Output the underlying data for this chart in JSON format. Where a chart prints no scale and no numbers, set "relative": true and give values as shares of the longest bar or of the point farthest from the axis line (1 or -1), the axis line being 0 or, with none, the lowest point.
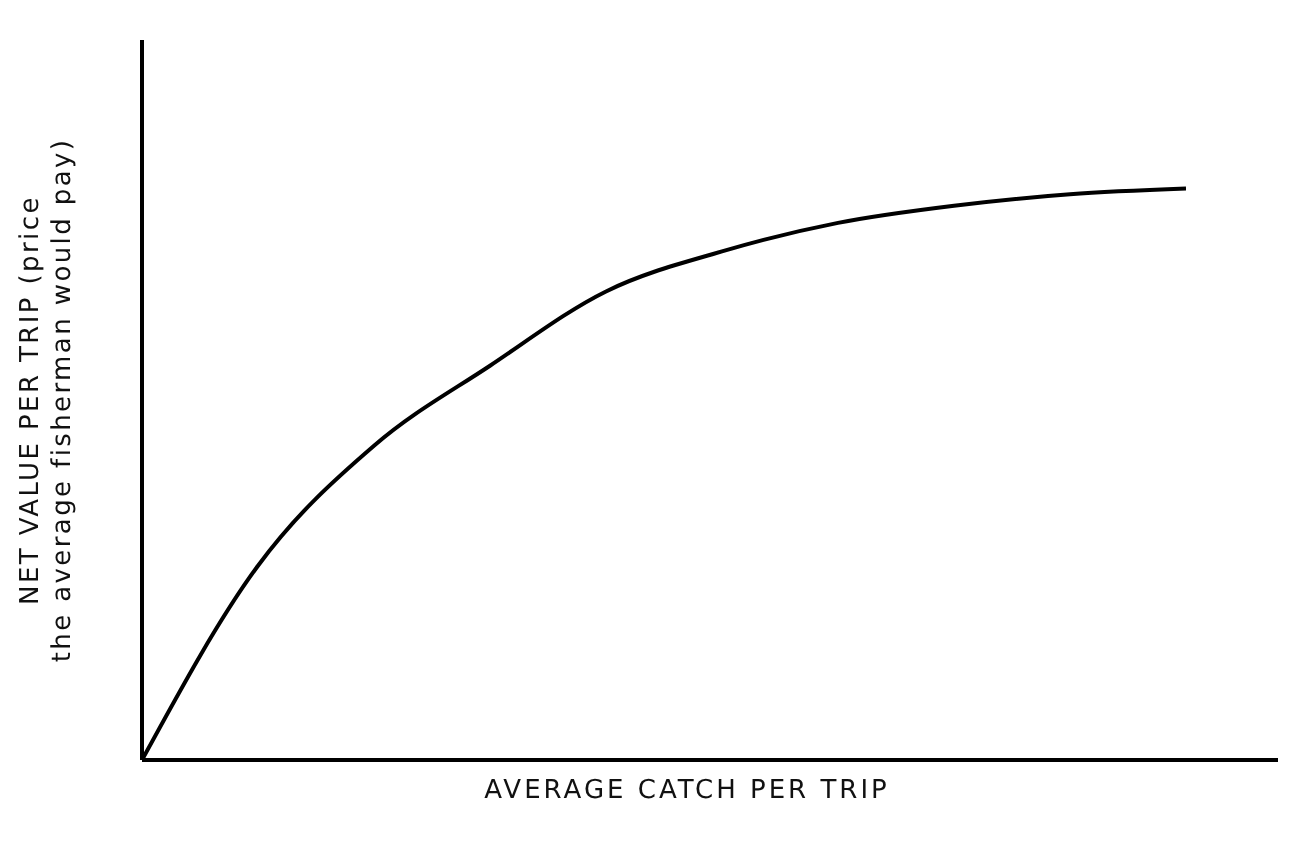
{
  "chart_data": {
    "type": "line",
    "relative": true,
    "xlabel": "AVERAGE CATCH PER TRIP",
    "ylabel": "NET VALUE PER TRIP (price\nthe average fisherman would pay)",
    "categories": [
      null,
      null,
      null,
      null,
      null,
      null,
      null,
      null,
      null,
      null
    ],
    "series": [
      {
        "color": "#000000",
        "values": [
          0,
          0.34,
          0.55,
          0.69,
          0.82,
          0.89,
          0.94,
          0.97,
          0.99,
          1
        ]
      }
    ],
    "grid": false,
    "marker": "none",
    "line_style": "solid"
  }
}
